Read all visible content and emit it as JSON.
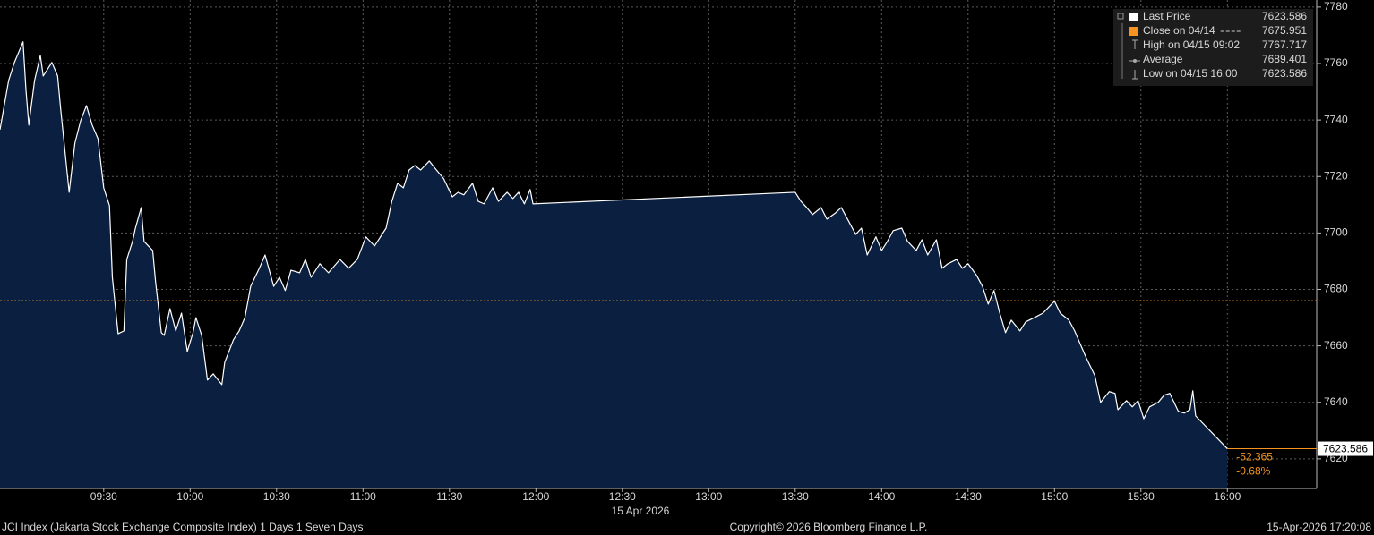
{
  "chart_data": {
    "type": "area",
    "xlabel": "15 Apr 2026",
    "source": "JCI Index (Jakarta Stock Exchange Composite Index) 1 Days 1 Seven Days",
    "copyright": "Copyright© 2026 Bloomberg Finance L.P.",
    "timestamp": "15-Apr-2026 17:20:08",
    "xlim": [
      "08:54",
      "16:31"
    ],
    "xticks": [
      "09:30",
      "10:00",
      "10:30",
      "11:00",
      "11:30",
      "12:00",
      "12:30",
      "13:00",
      "13:30",
      "14:00",
      "14:30",
      "15:00",
      "15:30",
      "16:00"
    ],
    "ylim": [
      7609.5,
      7782.5
    ],
    "yticks": [
      7620,
      7640,
      7660,
      7680,
      7700,
      7720,
      7740,
      7760,
      7780
    ],
    "grid": true,
    "x": [
      "08:54",
      "08:57",
      "08:59",
      "09:02",
      "09:03",
      "09:04",
      "09:06",
      "09:08",
      "09:09",
      "09:11",
      "09:12",
      "09:14",
      "09:15",
      "09:18",
      "09:20",
      "09:22",
      "09:24",
      "09:26",
      "09:28",
      "09:30",
      "09:32",
      "09:33",
      "09:35",
      "09:37",
      "09:38",
      "09:40",
      "09:41",
      "09:43",
      "09:44",
      "09:47",
      "09:48",
      "09:50",
      "09:51",
      "09:53",
      "09:55",
      "09:57",
      "09:59",
      "10:01",
      "10:02",
      "10:04",
      "10:06",
      "10:08",
      "10:11",
      "10:12",
      "10:15",
      "10:17",
      "10:19",
      "10:21",
      "10:24",
      "10:26",
      "10:29",
      "10:31",
      "10:33",
      "10:35",
      "10:38",
      "10:40",
      "10:42",
      "10:45",
      "10:48",
      "10:52",
      "10:55",
      "10:58",
      "11:01",
      "11:04",
      "11:08",
      "11:10",
      "11:12",
      "11:14",
      "11:16",
      "11:18",
      "11:20",
      "11:23",
      "11:25",
      "11:28",
      "11:31",
      "11:33",
      "11:35",
      "11:38",
      "11:40",
      "11:42",
      "11:45",
      "11:47",
      "11:50",
      "11:52",
      "11:54",
      "11:56",
      "11:58",
      "11:59",
      "13:30",
      "13:32",
      "13:34",
      "13:36",
      "13:39",
      "13:41",
      "13:44",
      "13:46",
      "13:49",
      "13:51",
      "13:53",
      "13:55",
      "13:58",
      "14:00",
      "14:02",
      "14:04",
      "14:07",
      "14:09",
      "14:12",
      "14:14",
      "14:16",
      "14:19",
      "14:21",
      "14:23",
      "14:26",
      "14:28",
      "14:30",
      "14:33",
      "14:35",
      "14:37",
      "14:39",
      "14:41",
      "14:43",
      "14:45",
      "14:48",
      "14:50",
      "14:53",
      "14:56",
      "14:59",
      "15:00",
      "15:02",
      "15:05",
      "15:07",
      "15:09",
      "15:11",
      "15:14",
      "15:16",
      "15:19",
      "15:21",
      "15:22",
      "15:25",
      "15:27",
      "15:29",
      "15:31",
      "15:33",
      "15:36",
      "15:38",
      "15:40",
      "15:43",
      "15:45",
      "15:47",
      "15:48",
      "15:49",
      "16:00"
    ],
    "series": [
      {
        "name": "Last Price",
        "color": "#ffffff",
        "fill": "#0b2040",
        "values": [
          7736.6,
          7754.0,
          7760.4,
          7767.7,
          7750.8,
          7738.2,
          7754.0,
          7762.9,
          7755.6,
          7758.8,
          7760.4,
          7755.6,
          7744.5,
          7714.4,
          7731.8,
          7739.8,
          7745.1,
          7738.2,
          7733.4,
          7716.0,
          7709.7,
          7684.3,
          7664.3,
          7665.3,
          7690.6,
          7697.0,
          7701.7,
          7709.0,
          7697.0,
          7693.8,
          7682.7,
          7664.7,
          7663.7,
          7673.2,
          7665.3,
          7671.6,
          7658.0,
          7664.7,
          7670.0,
          7663.7,
          7647.9,
          7650.1,
          7646.3,
          7654.2,
          7662.1,
          7665.3,
          7670.0,
          7681.1,
          7687.5,
          7692.2,
          7681.1,
          7684.3,
          7679.6,
          7686.8,
          7685.9,
          7690.6,
          7684.3,
          7689.1,
          7685.9,
          7690.6,
          7687.5,
          7690.6,
          7698.6,
          7695.4,
          7701.7,
          7711.2,
          7717.6,
          7716.0,
          7722.3,
          7723.9,
          7722.3,
          7725.5,
          7722.9,
          7719.2,
          7712.8,
          7714.4,
          7713.5,
          7717.6,
          7711.2,
          7710.3,
          7716.0,
          7711.2,
          7714.4,
          7712.2,
          7714.4,
          7710.3,
          7715.4,
          7710.3,
          7714.4,
          7711.2,
          7709.0,
          7706.5,
          7709.0,
          7704.9,
          7707.1,
          7709.0,
          7703.3,
          7699.5,
          7701.7,
          7692.2,
          7698.6,
          7693.8,
          7697.0,
          7700.8,
          7701.7,
          7697.0,
          7693.8,
          7697.6,
          7692.2,
          7697.6,
          7687.5,
          7689.1,
          7690.6,
          7687.5,
          7689.1,
          7684.9,
          7681.1,
          7674.8,
          7679.6,
          7671.6,
          7664.7,
          7669.1,
          7665.3,
          7668.5,
          7670.0,
          7671.6,
          7674.8,
          7675.8,
          7671.6,
          7669.1,
          7665.3,
          7660.5,
          7655.8,
          7649.5,
          7640.0,
          7643.8,
          7643.2,
          7637.4,
          7640.6,
          7638.4,
          7640.6,
          7634.2,
          7638.4,
          7640.0,
          7642.5,
          7643.2,
          7636.8,
          7636.2,
          7637.4,
          7644.1,
          7635.2,
          7623.586
        ]
      }
    ],
    "legend": [
      {
        "label": "Last Price",
        "value": 7623.586,
        "color": "#ffffff"
      },
      {
        "label": "Close on 04/14",
        "value": 7675.951,
        "color": "#f7931e"
      },
      {
        "label": "High on 04/15 09:02",
        "value": 7767.717
      },
      {
        "label": "Average",
        "value": 7689.401
      },
      {
        "label": "Low on 04/15 16:00",
        "value": 7623.586
      }
    ],
    "change": -52.365,
    "change_pct": {
      "value": -0.68,
      "label": "-0.68%"
    }
  }
}
